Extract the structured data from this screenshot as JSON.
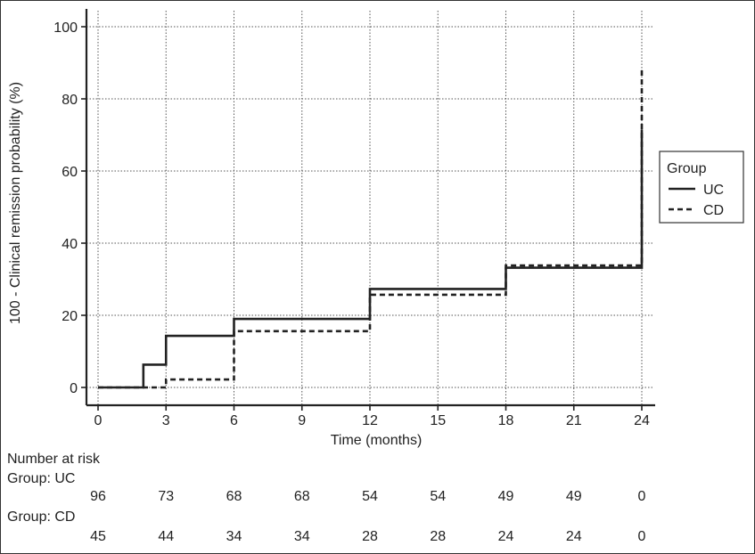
{
  "chart_data": {
    "type": "line",
    "step": true,
    "xlabel": "Time (months)",
    "ylabel": "100 - Clinical remission probability (%)",
    "xlim": [
      0,
      24
    ],
    "ylim": [
      0,
      100
    ],
    "x_ticks": [
      0,
      3,
      6,
      9,
      12,
      15,
      18,
      21,
      24
    ],
    "y_ticks": [
      0,
      20,
      40,
      60,
      80,
      100
    ],
    "grid": true,
    "legend_title": "Group",
    "legend_position": "right",
    "series": [
      {
        "name": "UC",
        "style": "solid",
        "color": "#222222",
        "x": [
          0,
          2,
          3,
          6,
          12,
          18,
          24
        ],
        "y": [
          0,
          6.3,
          14.3,
          19,
          27.3,
          33.2,
          71.5
        ]
      },
      {
        "name": "CD",
        "style": "dashed",
        "color": "#222222",
        "x": [
          0,
          3,
          6,
          12,
          18,
          24
        ],
        "y": [
          0,
          2.2,
          15.6,
          25.7,
          33.8,
          88.6
        ]
      }
    ]
  },
  "risk_table": {
    "title": "Number at risk",
    "groups": [
      {
        "label": "Group: UC",
        "counts": [
          "96",
          "73",
          "68",
          "68",
          "54",
          "54",
          "49",
          "49",
          "0"
        ]
      },
      {
        "label": "Group: CD",
        "counts": [
          "45",
          "44",
          "34",
          "34",
          "28",
          "28",
          "24",
          "24",
          "0"
        ]
      }
    ]
  }
}
